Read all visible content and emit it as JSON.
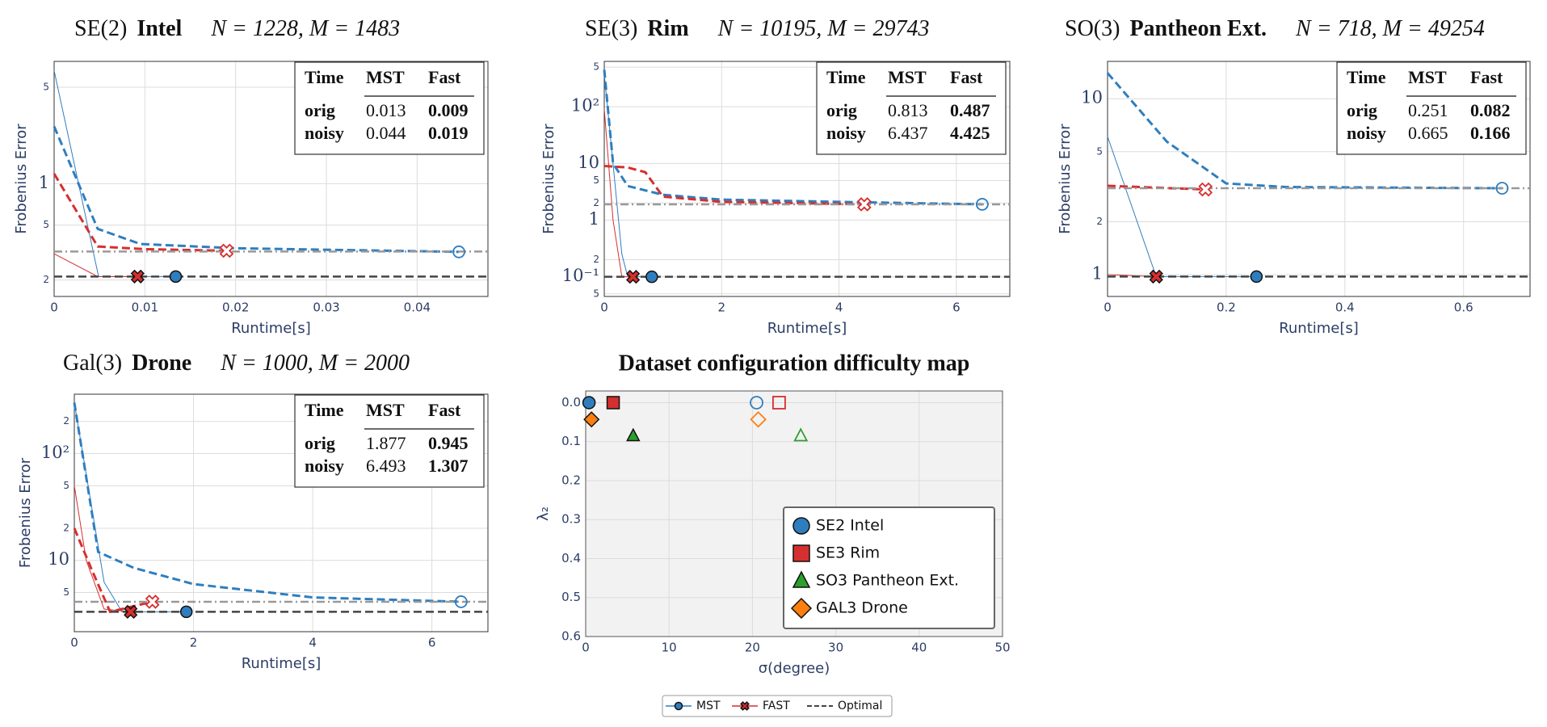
{
  "chart_data": [
    {
      "type": "line",
      "group": "SE(2)",
      "title": "Intel",
      "stats": "N = 1228,  M = 1483",
      "x_label": "Runtime[s]",
      "y_label": "Frobenius Error",
      "ylog": true,
      "grid": true,
      "legend": "bottom",
      "xlim": [
        0,
        0.0478
      ],
      "xticks": [
        0,
        0.01,
        0.02,
        0.03,
        0.04
      ],
      "ylim": [
        0.152,
        7.7
      ],
      "yticks": [
        {
          "value": 0.2,
          "label": "2"
        },
        {
          "value": 0.5,
          "label": "5"
        },
        1,
        5
      ],
      "series": [
        {
          "name": "MST",
          "color": "#2e7ebf",
          "dash": "solid",
          "width": 1,
          "marker": "circle",
          "marker_filled": true,
          "x": [
            0,
            0.0049,
            0.0134
          ],
          "values": [
            6.6,
            0.212,
            0.212
          ]
        },
        {
          "name": "FAST",
          "color": "#d62f2f",
          "dash": "solid",
          "width": 1,
          "marker": "x",
          "marker_filled": true,
          "x": [
            0,
            0.0048,
            0.0092
          ],
          "values": [
            0.31,
            0.212,
            0.212
          ]
        },
        {
          "name": "MST",
          "color": "#2e7ebf",
          "dash": "dashed",
          "width": 3,
          "marker": "circle",
          "marker_filled": false,
          "x": [
            0,
            0.0048,
            0.0095,
            0.02,
            0.0446
          ],
          "values": [
            2.6,
            0.47,
            0.365,
            0.34,
            0.32
          ]
        },
        {
          "name": "FAST",
          "color": "#d62f2f",
          "dash": "dashed",
          "width": 3,
          "marker": "x",
          "marker_filled": false,
          "x": [
            0,
            0.0048,
            0.01,
            0.019
          ],
          "values": [
            1.18,
            0.35,
            0.335,
            0.326
          ]
        },
        {
          "name": "Optimal",
          "color": "#444444",
          "dash": "dashed",
          "width": 2.5,
          "value": 0.212
        },
        {
          "name": "Optimal",
          "color": "#999999",
          "dash": "dashdot",
          "width": 2.5,
          "value": 0.322
        }
      ],
      "table": {
        "header": [
          "Time",
          "MST",
          "Fast"
        ],
        "rows": [
          [
            "orig",
            0.013,
            0.009
          ],
          [
            "noisy",
            0.044,
            0.019
          ]
        ]
      }
    },
    {
      "type": "line",
      "group": "SE(3)",
      "title": "Rim",
      "stats": "N = 10195,  M = 29743",
      "x_label": "Runtime[s]",
      "y_label": "Frobenius Error",
      "ylog": true,
      "grid": true,
      "xlim": [
        0,
        6.91
      ],
      "xticks": [
        0,
        2,
        4,
        6
      ],
      "ylim": [
        0.045,
        632
      ],
      "yticks": [
        {
          "value": 0.05,
          "label": "5"
        },
        {
          "value": 0.1,
          "label": "10⁻¹"
        },
        {
          "value": 0.2,
          "label": "2"
        },
        1,
        2,
        5,
        10,
        {
          "value": 100,
          "label": "10²"
        },
        {
          "value": 500,
          "label": "5"
        }
      ],
      "series": [
        {
          "name": "MST",
          "color": "#2e7ebf",
          "dash": "solid",
          "width": 1,
          "marker": "circle",
          "marker_filled": true,
          "x": [
            0,
            0.3,
            0.4,
            0.81
          ],
          "values": [
            380,
            0.25,
            0.1,
            0.1
          ]
        },
        {
          "name": "FAST",
          "color": "#d62f2f",
          "dash": "solid",
          "width": 1,
          "marker": "x",
          "marker_filled": true,
          "x": [
            0,
            0.15,
            0.3,
            0.49
          ],
          "values": [
            92,
            1,
            0.1,
            0.1
          ]
        },
        {
          "name": "MST",
          "color": "#2e7ebf",
          "dash": "dashed",
          "width": 3,
          "marker": "circle",
          "marker_filled": false,
          "x": [
            0,
            0.15,
            0.4,
            1,
            2,
            4,
            6.44
          ],
          "values": [
            450,
            10,
            4,
            2.8,
            2.3,
            2.1,
            1.9
          ]
        },
        {
          "name": "FAST",
          "color": "#d62f2f",
          "dash": "dashed",
          "width": 3,
          "marker": "x",
          "marker_filled": false,
          "x": [
            0,
            0.4,
            0.7,
            1,
            2,
            4.43
          ],
          "values": [
            9,
            8.5,
            7,
            2.6,
            2.1,
            1.9
          ]
        },
        {
          "name": "Optimal",
          "color": "#444444",
          "dash": "dashed",
          "width": 2.5,
          "value": 0.1
        },
        {
          "name": "Optimal",
          "color": "#999999",
          "dash": "dashdot",
          "width": 2.5,
          "value": 1.9
        }
      ],
      "table": {
        "header": [
          "Time",
          "MST",
          "Fast"
        ],
        "rows": [
          [
            "orig",
            0.813,
            0.487
          ],
          [
            "noisy",
            6.437,
            4.425
          ]
        ]
      }
    },
    {
      "type": "line",
      "group": "SO(3)",
      "title": "Pantheon Ext.",
      "stats": "N = 718,  M = 49254",
      "x_label": "Runtime[s]",
      "y_label": "Frobenius Error",
      "ylog": true,
      "grid": true,
      "xlim": [
        0,
        0.712
      ],
      "xticks": [
        0,
        0.2,
        0.4,
        0.6
      ],
      "ylim": [
        0.752,
        16.3
      ],
      "yticks": [
        1,
        2,
        5,
        10
      ],
      "series": [
        {
          "name": "MST",
          "color": "#2e7ebf",
          "dash": "solid",
          "width": 1,
          "marker": "circle",
          "marker_filled": true,
          "x": [
            0,
            0.082,
            0.251
          ],
          "values": [
            6.1,
            0.975,
            0.975
          ]
        },
        {
          "name": "FAST",
          "color": "#d62f2f",
          "dash": "solid",
          "width": 1,
          "marker": "x",
          "marker_filled": true,
          "x": [
            0,
            0.082
          ],
          "values": [
            1.0,
            0.975
          ]
        },
        {
          "name": "MST",
          "color": "#2e7ebf",
          "dash": "dashed",
          "width": 3,
          "marker": "circle",
          "marker_filled": false,
          "x": [
            0,
            0.1,
            0.2,
            0.3,
            0.665
          ],
          "values": [
            14,
            5.7,
            3.3,
            3.15,
            3.1
          ]
        },
        {
          "name": "FAST",
          "color": "#d62f2f",
          "dash": "dashed",
          "width": 3,
          "marker": "x",
          "marker_filled": false,
          "x": [
            0,
            0.165
          ],
          "values": [
            3.2,
            3.05
          ]
        },
        {
          "name": "Optimal",
          "color": "#444444",
          "dash": "dashed",
          "width": 2.5,
          "value": 0.975
        },
        {
          "name": "Optimal",
          "color": "#999999",
          "dash": "dashdot",
          "width": 2.5,
          "value": 3.1
        }
      ],
      "table": {
        "header": [
          "Time",
          "MST",
          "Fast"
        ],
        "rows": [
          [
            "orig",
            0.251,
            0.082
          ],
          [
            "noisy",
            0.665,
            0.166
          ]
        ]
      }
    },
    {
      "type": "line",
      "group": "Gal(3)",
      "title": "Drone",
      "stats": "N = 1000,  M = 2000",
      "x_label": "Runtime[s]",
      "y_label": "Frobenius Error",
      "ylog": true,
      "grid": true,
      "xlim": [
        0,
        6.94
      ],
      "xticks": [
        0,
        2,
        4,
        6
      ],
      "ylim": [
        2.15,
        360
      ],
      "yticks": [
        5,
        10,
        {
          "value": 20,
          "label": "2"
        },
        {
          "value": 50,
          "label": "5"
        },
        {
          "value": 100,
          "label": "10²"
        },
        {
          "value": 200,
          "label": "2"
        }
      ],
      "series": [
        {
          "name": "MST",
          "color": "#2e7ebf",
          "dash": "solid",
          "width": 1,
          "marker": "circle",
          "marker_filled": true,
          "x": [
            0,
            0.5,
            0.8,
            1.88
          ],
          "values": [
            300,
            6.25,
            3.3,
            3.3
          ]
        },
        {
          "name": "FAST",
          "color": "#d62f2f",
          "dash": "solid",
          "width": 1,
          "marker": "x",
          "marker_filled": true,
          "x": [
            0,
            0.2,
            0.5,
            0.945
          ],
          "values": [
            50,
            10,
            3.5,
            3.3
          ]
        },
        {
          "name": "MST",
          "color": "#2e7ebf",
          "dash": "dashed",
          "width": 3,
          "marker": "circle",
          "marker_filled": false,
          "x": [
            0,
            0.4,
            1,
            2,
            4,
            6.49
          ],
          "values": [
            300,
            12,
            8.5,
            6,
            4.5,
            4.1
          ]
        },
        {
          "name": "FAST",
          "color": "#d62f2f",
          "dash": "dashed",
          "width": 3,
          "marker": "x",
          "marker_filled": false,
          "x": [
            0,
            0.3,
            0.6,
            1.31
          ],
          "values": [
            20,
            8,
            3.3,
            4.1
          ]
        },
        {
          "name": "Optimal",
          "color": "#444444",
          "dash": "dashed",
          "width": 2.5,
          "value": 3.3
        },
        {
          "name": "Optimal",
          "color": "#999999",
          "dash": "dashdot",
          "width": 2.5,
          "value": 4.1
        }
      ],
      "table": {
        "header": [
          "Time",
          "MST",
          "Fast"
        ],
        "rows": [
          [
            "orig",
            1.877,
            0.945
          ],
          [
            "noisy",
            6.493,
            1.307
          ]
        ]
      }
    },
    {
      "type": "scatter",
      "title": "Dataset configuration difficulty map",
      "x_label": "σ(degree)",
      "y_label": "λ₂",
      "xlim": [
        0,
        50
      ],
      "xticks": [
        0,
        10,
        20,
        30,
        40,
        50
      ],
      "ylim": [
        -0.03,
        0.6
      ],
      "y_inverted": true,
      "yticks": [
        {
          "value": 0,
          "label": "0.0"
        },
        0.1,
        0.2,
        0.3,
        0.4,
        0.5,
        0.6
      ],
      "grid": true,
      "legend": "lower right",
      "series": [
        {
          "name": "SE2 Intel",
          "color": "#2e7ebf",
          "marker": "circle",
          "x": [
            0.4,
            20.5
          ],
          "values": [
            0,
            0
          ],
          "filled": [
            true,
            false
          ]
        },
        {
          "name": "SE3 Rim",
          "color": "#d62f2f",
          "marker": "square",
          "x": [
            3.3,
            23.2
          ],
          "values": [
            0,
            0
          ],
          "filled": [
            true,
            false
          ]
        },
        {
          "name": "SO3 Pantheon Ext.",
          "color": "#2ca02c",
          "marker": "triangle",
          "x": [
            5.7,
            25.8
          ],
          "values": [
            0.085,
            0.085
          ],
          "filled": [
            true,
            false
          ]
        },
        {
          "name": "GAL3 Drone",
          "color": "#ff7f0e",
          "marker": "diamond",
          "x": [
            0.7,
            20.7
          ],
          "values": [
            0.043,
            0.043
          ],
          "filled": [
            true,
            false
          ]
        }
      ]
    }
  ]
}
